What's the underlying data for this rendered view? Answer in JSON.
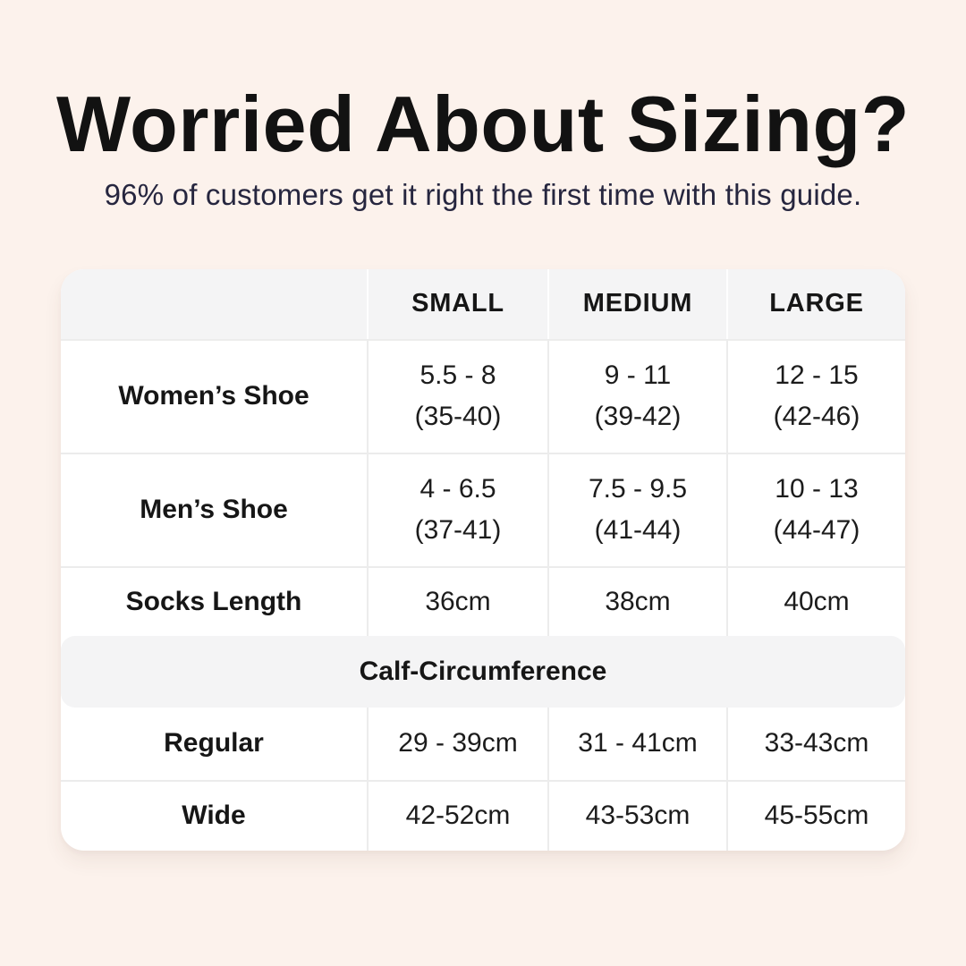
{
  "page": {
    "title": "Worried About Sizing?",
    "subtitle": "96% of customers get it right the first time with this guide."
  },
  "colors": {
    "background": "#fcf2ec",
    "card_background": "#ffffff",
    "header_row_background": "#f4f4f5",
    "section_band_background": "#f4f4f5",
    "title_text": "#121212",
    "subtitle_text": "#26263f",
    "table_text": "#1c1c1c",
    "divider": "#ececec"
  },
  "table": {
    "columns": {
      "col0": "",
      "col1": "SMALL",
      "col2": "MEDIUM",
      "col3": "LARGE"
    },
    "rows": [
      {
        "label": "Women’s Shoe",
        "cells": [
          {
            "line1": "5.5 - 8",
            "line2": "(35-40)"
          },
          {
            "line1": "9 - 11",
            "line2": "(39-42)"
          },
          {
            "line1": "12 - 15",
            "line2": "(42-46)"
          }
        ]
      },
      {
        "label": "Men’s Shoe",
        "cells": [
          {
            "line1": "4 - 6.5",
            "line2": "(37-41)"
          },
          {
            "line1": "7.5 - 9.5",
            "line2": "(41-44)"
          },
          {
            "line1": "10 - 13",
            "line2": "(44-47)"
          }
        ]
      },
      {
        "label": "Socks Length",
        "cells": [
          {
            "line1": "36cm"
          },
          {
            "line1": "38cm"
          },
          {
            "line1": "40cm"
          }
        ]
      }
    ],
    "section_header": "Calf-Circumference",
    "calf_rows": [
      {
        "label": "Regular",
        "cells": [
          {
            "line1": "29 - 39cm"
          },
          {
            "line1": "31 - 41cm"
          },
          {
            "line1": "33-43cm"
          }
        ]
      },
      {
        "label": "Wide",
        "cells": [
          {
            "line1": "42-52cm"
          },
          {
            "line1": "43-53cm"
          },
          {
            "line1": "45-55cm"
          }
        ]
      }
    ]
  }
}
